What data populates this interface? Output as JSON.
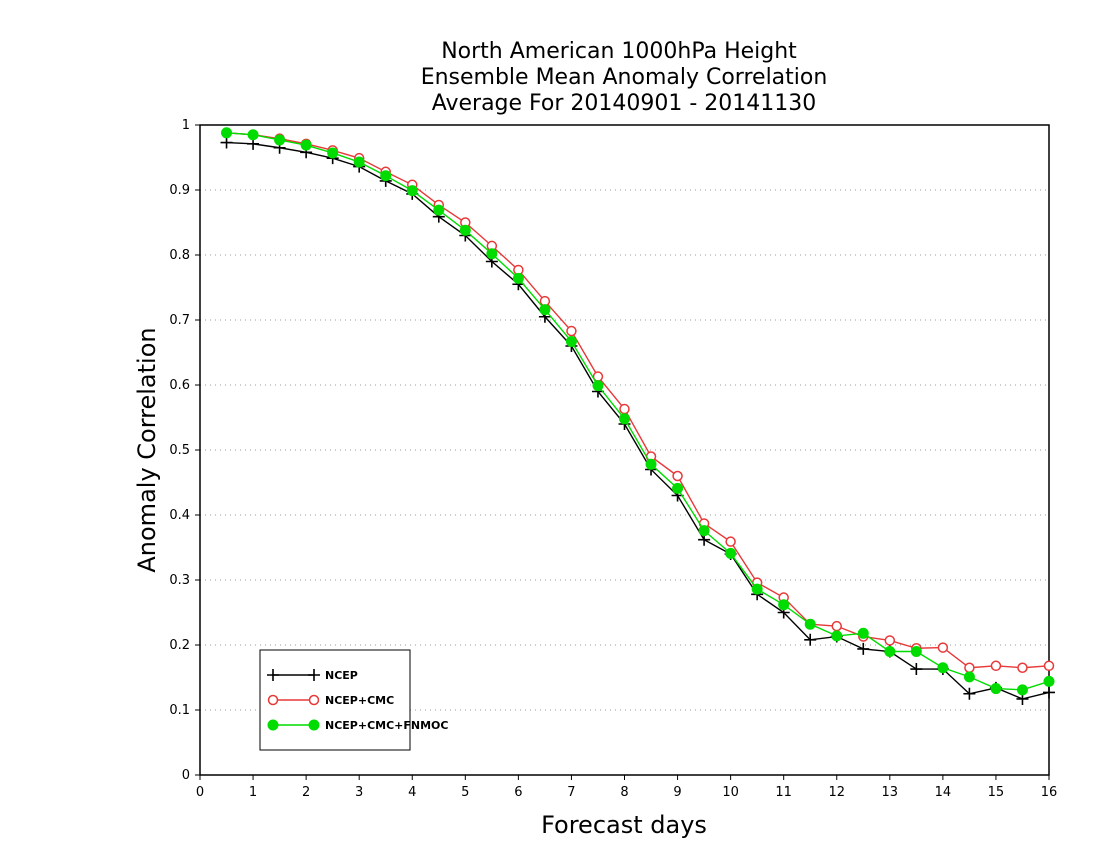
{
  "chart_data": {
    "type": "line",
    "title_lines": [
      "North American 1000hPa Height",
      "Ensemble Mean Anomaly Correlation",
      "Average For 20140901 - 20141130"
    ],
    "xlabel": "Forecast days",
    "ylabel": "Anomaly Correlation",
    "xlim": [
      0,
      16
    ],
    "ylim": [
      0,
      1
    ],
    "x_ticks": [
      0,
      1,
      2,
      3,
      4,
      5,
      6,
      7,
      8,
      9,
      10,
      11,
      12,
      13,
      14,
      15,
      16
    ],
    "y_ticks": [
      0,
      0.1,
      0.2,
      0.3,
      0.4,
      0.5,
      0.6,
      0.7,
      0.8,
      0.9,
      1
    ],
    "y_tick_labels": [
      "0",
      "0.1",
      "0.2",
      "0.3",
      "0.4",
      "0.5",
      "0.6",
      "0.7",
      "0.8",
      "0.9",
      "1"
    ],
    "grid": "horizontal dotted",
    "legend_position": "bottom-left",
    "x": [
      0.5,
      1,
      1.5,
      2,
      2.5,
      3,
      3.5,
      4,
      4.5,
      5,
      5.5,
      6,
      6.5,
      7,
      7.5,
      8,
      8.5,
      9,
      9.5,
      10,
      10.5,
      11,
      11.5,
      12,
      12.5,
      13,
      13.5,
      14,
      14.5,
      15,
      15.5,
      16
    ],
    "series": [
      {
        "name": "NCEP",
        "color": "#000000",
        "marker": "plus",
        "values": [
          0.973,
          0.971,
          0.965,
          0.958,
          0.949,
          0.936,
          0.914,
          0.894,
          0.859,
          0.83,
          0.79,
          0.755,
          0.705,
          0.66,
          0.59,
          0.54,
          0.47,
          0.43,
          0.362,
          0.34,
          0.278,
          0.25,
          0.208,
          0.213,
          0.194,
          0.19,
          0.163,
          0.163,
          0.125,
          0.134,
          0.117,
          0.127
        ]
      },
      {
        "name": "NCEP+CMC",
        "color": "#e83838",
        "marker": "open-circle",
        "values": [
          0.988,
          0.985,
          0.979,
          0.971,
          0.961,
          0.949,
          0.928,
          0.908,
          0.877,
          0.85,
          0.814,
          0.777,
          0.729,
          0.683,
          0.613,
          0.563,
          0.49,
          0.46,
          0.387,
          0.359,
          0.296,
          0.273,
          0.232,
          0.229,
          0.213,
          0.207,
          0.195,
          0.196,
          0.165,
          0.168,
          0.165,
          0.168
        ]
      },
      {
        "name": "NCEP+CMC+FNMOC",
        "color": "#00dc00",
        "marker": "filled-circle",
        "values": [
          0.988,
          0.985,
          0.977,
          0.969,
          0.957,
          0.943,
          0.922,
          0.899,
          0.869,
          0.838,
          0.802,
          0.764,
          0.716,
          0.667,
          0.599,
          0.548,
          0.478,
          0.441,
          0.376,
          0.341,
          0.286,
          0.262,
          0.232,
          0.214,
          0.218,
          0.19,
          0.19,
          0.165,
          0.151,
          0.133,
          0.131,
          0.144
        ]
      }
    ]
  }
}
